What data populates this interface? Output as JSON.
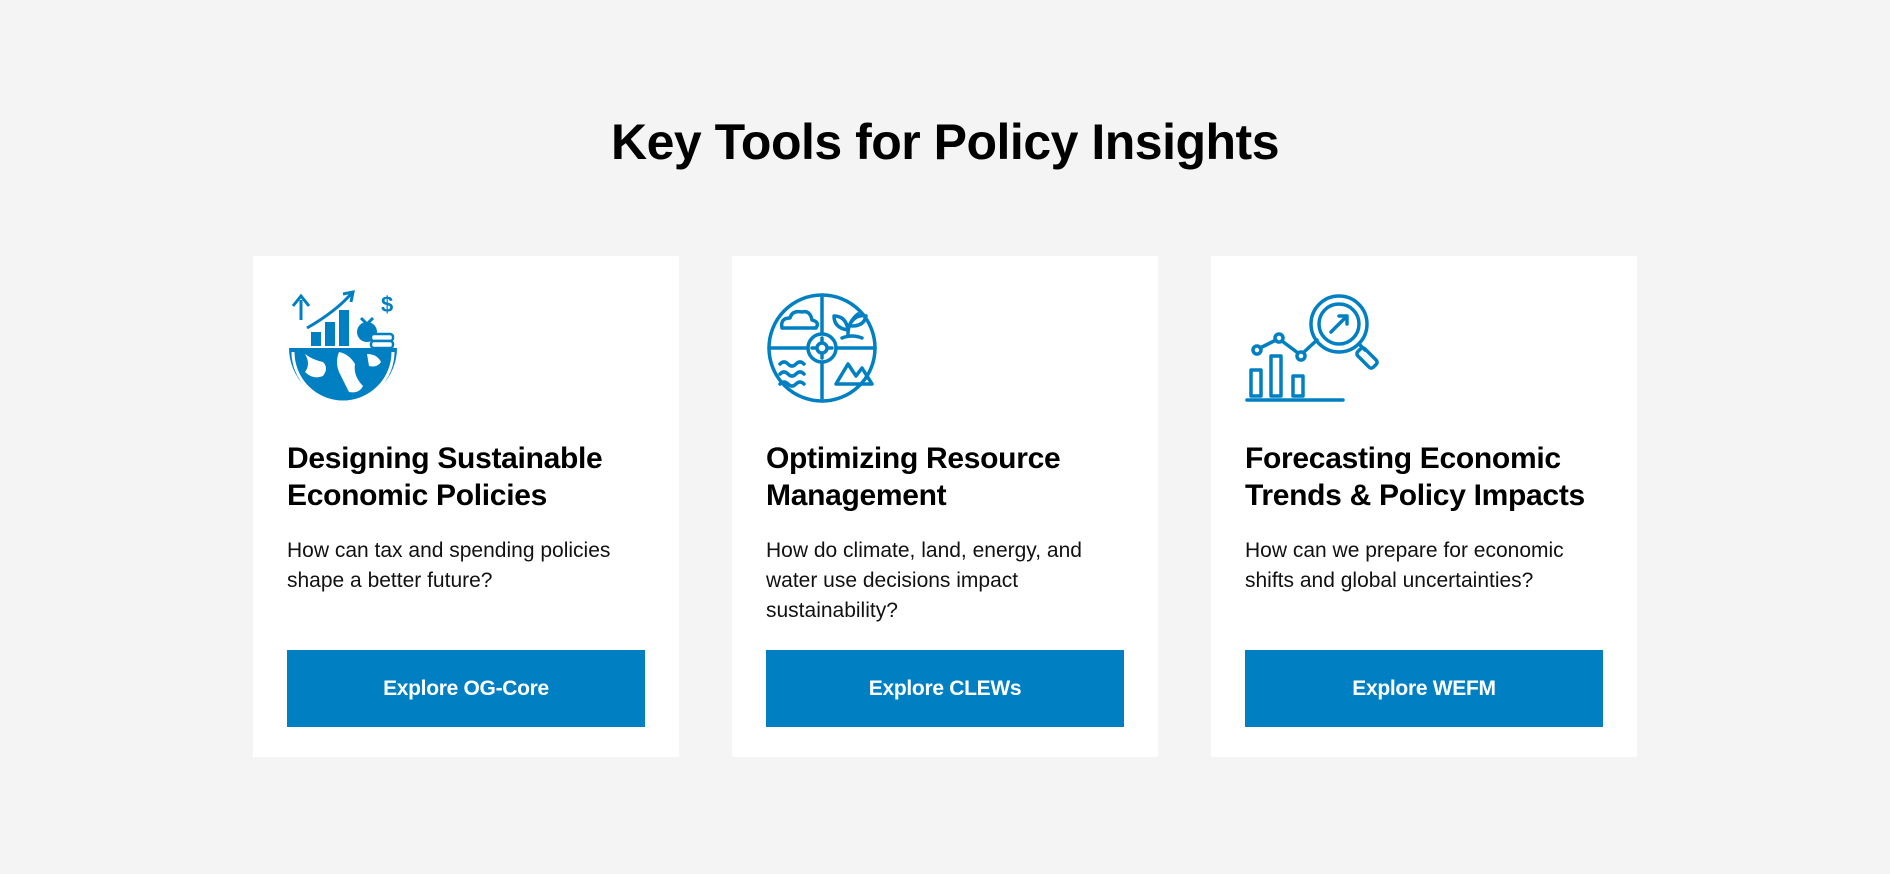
{
  "section": {
    "title": "Key Tools for Policy Insights"
  },
  "theme": {
    "accent": "#0080c3",
    "background": "#f4f4f4",
    "card": "#ffffff"
  },
  "cards": [
    {
      "icon": "globe-growth-chart-icon",
      "title": "Designing Sustainable Economic Policies",
      "description": "How can tax and spending policies shape a better future?",
      "button_label": "Explore OG-Core"
    },
    {
      "icon": "resource-quadrant-icon",
      "title": "Optimizing Resource Management",
      "description": "How do climate, land, energy, and water use decisions impact sustainability?",
      "button_label": "Explore CLEWs"
    },
    {
      "icon": "forecast-magnifier-chart-icon",
      "title": "Forecasting Economic Trends & Policy Impacts",
      "description": "How can we prepare for economic shifts and global uncertainties?",
      "button_label": "Explore WEFM"
    }
  ]
}
